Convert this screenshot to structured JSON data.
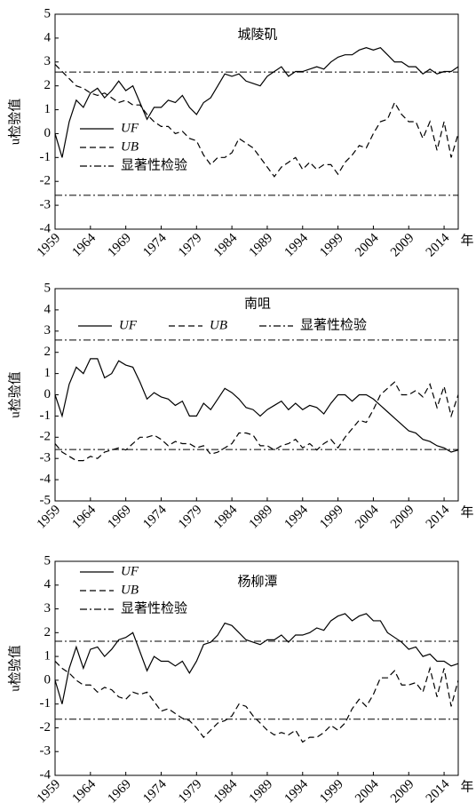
{
  "chart_data": [
    {
      "type": "line",
      "title": "城陵矶",
      "ylabel": "u检验值",
      "xlabel": "年",
      "legend": "center left",
      "x": [
        1959,
        1960,
        1961,
        1962,
        1963,
        1964,
        1965,
        1966,
        1967,
        1968,
        1969,
        1970,
        1971,
        1972,
        1973,
        1974,
        1975,
        1976,
        1977,
        1978,
        1979,
        1980,
        1981,
        1982,
        1983,
        1984,
        1985,
        1986,
        1987,
        1988,
        1989,
        1990,
        1991,
        1992,
        1993,
        1994,
        1995,
        1996,
        1997,
        1998,
        1999,
        2000,
        2001,
        2002,
        2003,
        2004,
        2005,
        2006,
        2007,
        2008,
        2009,
        2010,
        2011,
        2012,
        2013,
        2014,
        2015,
        2016
      ],
      "xlim": [
        1959,
        2016
      ],
      "xticks": [
        1959,
        1964,
        1969,
        1974,
        1979,
        1984,
        1989,
        1994,
        1999,
        2004,
        2009,
        2014
      ],
      "ylim": [
        -4,
        5
      ],
      "yticks": [
        -4,
        -3,
        -2,
        -1,
        0,
        1,
        2,
        3,
        4,
        5
      ],
      "series": [
        {
          "name": "UF",
          "color": "#000000",
          "style": "solid",
          "values": [
            0,
            -1,
            0.5,
            1.4,
            1.1,
            1.7,
            1.9,
            1.5,
            1.8,
            2.2,
            1.8,
            2.0,
            1.3,
            0.6,
            1.1,
            1.1,
            1.4,
            1.3,
            1.6,
            1.1,
            0.8,
            1.3,
            1.5,
            2.0,
            2.5,
            2.4,
            2.5,
            2.2,
            2.1,
            2.0,
            2.4,
            2.6,
            2.8,
            2.4,
            2.6,
            2.6,
            2.7,
            2.8,
            2.7,
            3.0,
            3.2,
            3.3,
            3.3,
            3.5,
            3.6,
            3.5,
            3.6,
            3.3,
            3.0,
            3.0,
            2.8,
            2.8,
            2.5,
            2.7,
            2.5,
            2.6,
            2.6,
            2.8
          ]
        },
        {
          "name": "UB",
          "color": "#000000",
          "style": "dashed",
          "values": [
            2.9,
            2.6,
            2.3,
            2.0,
            1.9,
            1.7,
            1.6,
            1.7,
            1.5,
            1.3,
            1.4,
            1.2,
            1.2,
            0.8,
            0.5,
            0.3,
            0.3,
            0.0,
            0.1,
            -0.2,
            -0.3,
            -0.9,
            -1.3,
            -1.0,
            -1.0,
            -0.8,
            -0.2,
            -0.4,
            -0.6,
            -1.0,
            -1.4,
            -1.8,
            -1.4,
            -1.2,
            -1.0,
            -1.5,
            -1.2,
            -1.5,
            -1.3,
            -1.3,
            -1.7,
            -1.2,
            -0.9,
            -0.5,
            -0.6,
            0.0,
            0.5,
            0.6,
            1.3,
            0.8,
            0.5,
            0.5,
            -0.2,
            0.5,
            -0.7,
            0.5,
            -1.0,
            0.0
          ]
        },
        {
          "name": "显著性检验",
          "color": "#000000",
          "style": "dashdot",
          "levels": [
            2.58,
            -2.58
          ]
        }
      ]
    },
    {
      "type": "line",
      "title": "南咀",
      "ylabel": "u检验值",
      "xlabel": "年",
      "legend": "upper center",
      "x": [
        1959,
        1960,
        1961,
        1962,
        1963,
        1964,
        1965,
        1966,
        1967,
        1968,
        1969,
        1970,
        1971,
        1972,
        1973,
        1974,
        1975,
        1976,
        1977,
        1978,
        1979,
        1980,
        1981,
        1982,
        1983,
        1984,
        1985,
        1986,
        1987,
        1988,
        1989,
        1990,
        1991,
        1992,
        1993,
        1994,
        1995,
        1996,
        1997,
        1998,
        1999,
        2000,
        2001,
        2002,
        2003,
        2004,
        2005,
        2006,
        2007,
        2008,
        2009,
        2010,
        2011,
        2012,
        2013,
        2014,
        2015,
        2016
      ],
      "xlim": [
        1959,
        2016
      ],
      "xticks": [
        1959,
        1964,
        1969,
        1974,
        1979,
        1984,
        1989,
        1994,
        1999,
        2004,
        2009,
        2014
      ],
      "ylim": [
        -5,
        5
      ],
      "yticks": [
        -5,
        -4,
        -3,
        -2,
        -1,
        0,
        1,
        2,
        3,
        4,
        5
      ],
      "series": [
        {
          "name": "UF",
          "color": "#000000",
          "style": "solid",
          "values": [
            0,
            -1,
            0.5,
            1.3,
            1.0,
            1.7,
            1.7,
            0.8,
            1.0,
            1.6,
            1.4,
            1.3,
            0.6,
            -0.2,
            0.1,
            -0.1,
            -0.2,
            -0.5,
            -0.3,
            -1.0,
            -1.0,
            -0.4,
            -0.7,
            -0.2,
            0.3,
            0.1,
            -0.2,
            -0.6,
            -0.7,
            -1.0,
            -0.7,
            -0.5,
            -0.3,
            -0.7,
            -0.4,
            -0.7,
            -0.5,
            -0.6,
            -0.9,
            -0.4,
            0.0,
            0.0,
            -0.3,
            0.0,
            0.0,
            -0.2,
            -0.5,
            -0.8,
            -1.1,
            -1.4,
            -1.7,
            -1.8,
            -2.1,
            -2.2,
            -2.4,
            -2.5,
            -2.7,
            -2.6
          ]
        },
        {
          "name": "UB",
          "color": "#000000",
          "style": "dashed",
          "values": [
            -2.3,
            -2.7,
            -2.9,
            -3.1,
            -3.1,
            -2.9,
            -3.0,
            -2.7,
            -2.6,
            -2.5,
            -2.6,
            -2.3,
            -2.0,
            -2.0,
            -1.9,
            -2.1,
            -2.4,
            -2.2,
            -2.3,
            -2.3,
            -2.5,
            -2.4,
            -2.8,
            -2.7,
            -2.5,
            -2.3,
            -1.8,
            -1.8,
            -1.9,
            -2.4,
            -2.4,
            -2.6,
            -2.4,
            -2.3,
            -2.1,
            -2.5,
            -2.3,
            -2.6,
            -2.3,
            -2.1,
            -2.5,
            -2.0,
            -1.6,
            -1.2,
            -1.3,
            -0.7,
            0.0,
            0.3,
            0.6,
            0.0,
            0.0,
            0.2,
            -0.1,
            0.5,
            -0.6,
            0.4,
            -1.0,
            0.0
          ]
        },
        {
          "name": "显著性检验",
          "color": "#000000",
          "style": "dashdot",
          "levels": [
            2.58,
            -2.58
          ]
        }
      ]
    },
    {
      "type": "line",
      "title": "杨柳潭",
      "ylabel": "u检验值",
      "xlabel": "年",
      "legend": "upper left",
      "x": [
        1959,
        1960,
        1961,
        1962,
        1963,
        1964,
        1965,
        1966,
        1967,
        1968,
        1969,
        1970,
        1971,
        1972,
        1973,
        1974,
        1975,
        1976,
        1977,
        1978,
        1979,
        1980,
        1981,
        1982,
        1983,
        1984,
        1985,
        1986,
        1987,
        1988,
        1989,
        1990,
        1991,
        1992,
        1993,
        1994,
        1995,
        1996,
        1997,
        1998,
        1999,
        2000,
        2001,
        2002,
        2003,
        2004,
        2005,
        2006,
        2007,
        2008,
        2009,
        2010,
        2011,
        2012,
        2013,
        2014,
        2015,
        2016
      ],
      "xlim": [
        1959,
        2016
      ],
      "xticks": [
        1959,
        1964,
        1969,
        1974,
        1979,
        1984,
        1989,
        1994,
        1999,
        2004,
        2009,
        2014
      ],
      "ylim": [
        -4,
        5
      ],
      "yticks": [
        -4,
        -3,
        -2,
        -1,
        0,
        1,
        2,
        3,
        4,
        5
      ],
      "series": [
        {
          "name": "UF",
          "color": "#000000",
          "style": "solid",
          "values": [
            0,
            -1,
            0.5,
            1.4,
            0.5,
            1.3,
            1.4,
            1.0,
            1.3,
            1.7,
            1.8,
            2.0,
            1.2,
            0.4,
            1.0,
            0.8,
            0.8,
            0.6,
            0.8,
            0.3,
            0.8,
            1.5,
            1.6,
            1.9,
            2.4,
            2.3,
            2.0,
            1.7,
            1.6,
            1.5,
            1.7,
            1.7,
            1.9,
            1.6,
            1.9,
            1.9,
            2.0,
            2.2,
            2.1,
            2.5,
            2.7,
            2.8,
            2.5,
            2.7,
            2.8,
            2.5,
            2.5,
            2.0,
            1.8,
            1.6,
            1.3,
            1.4,
            1.0,
            1.1,
            0.8,
            0.8,
            0.6,
            0.7
          ]
        },
        {
          "name": "UB",
          "color": "#000000",
          "style": "dashed",
          "values": [
            0.8,
            0.5,
            0.3,
            0.0,
            -0.2,
            -0.2,
            -0.5,
            -0.3,
            -0.4,
            -0.7,
            -0.8,
            -0.5,
            -0.6,
            -0.5,
            -0.9,
            -1.3,
            -1.2,
            -1.4,
            -1.6,
            -1.7,
            -2.0,
            -2.4,
            -2.1,
            -1.8,
            -1.7,
            -1.5,
            -1.0,
            -1.1,
            -1.5,
            -1.8,
            -2.1,
            -2.3,
            -2.2,
            -2.3,
            -2.1,
            -2.6,
            -2.4,
            -2.4,
            -2.2,
            -1.9,
            -2.1,
            -1.8,
            -1.2,
            -0.8,
            -1.1,
            -0.6,
            0.1,
            0.1,
            0.4,
            -0.2,
            -0.2,
            -0.1,
            -0.5,
            0.5,
            -0.7,
            0.5,
            -1.1,
            0.0
          ]
        },
        {
          "name": "显著性检验",
          "color": "#000000",
          "style": "dashdot",
          "levels": [
            1.64,
            -1.64
          ]
        }
      ]
    }
  ]
}
